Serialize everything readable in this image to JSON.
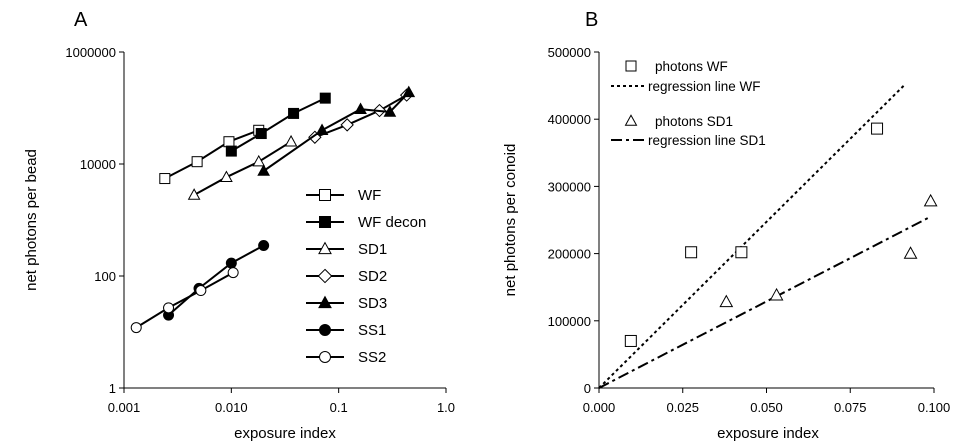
{
  "chart_data": [
    {
      "panel": "A",
      "type": "line",
      "log_x": true,
      "log_y": true,
      "xlabel": "exposure index",
      "ylabel": "net photons per bead",
      "xlim": [
        0.001,
        1.0
      ],
      "ylim": [
        1,
        1000000
      ],
      "xticks": [
        0.001,
        0.01,
        0.1,
        1.0
      ],
      "xtick_labels": [
        "0.001",
        "0.010",
        "0.1",
        "1.0"
      ],
      "yticks": [
        1,
        100,
        10000,
        1000000
      ],
      "ytick_labels": [
        "1",
        "100",
        "10000",
        "1000000"
      ],
      "legend_position": "lower-right",
      "series": [
        {
          "name": "WF",
          "marker": "open-square",
          "x": [
            0.0024,
            0.0048,
            0.0095,
            0.018
          ],
          "y": [
            5500,
            11000,
            25000,
            40000
          ]
        },
        {
          "name": "WF decon",
          "marker": "filled-square",
          "x": [
            0.01,
            0.019,
            0.038,
            0.075
          ],
          "y": [
            17000,
            35000,
            80000,
            150000
          ]
        },
        {
          "name": "SD1",
          "marker": "open-triangle",
          "x": [
            0.0045,
            0.009,
            0.018,
            0.036
          ],
          "y": [
            2800,
            5800,
            11000,
            25000
          ]
        },
        {
          "name": "SD2",
          "marker": "open-diamond",
          "x": [
            0.06,
            0.12,
            0.24,
            0.43
          ],
          "y": [
            30000,
            50000,
            90000,
            170000
          ]
        },
        {
          "name": "SD3",
          "marker": "filled-triangle",
          "x": [
            0.02,
            0.07,
            0.16,
            0.3,
            0.45
          ],
          "y": [
            7500,
            40000,
            95000,
            85000,
            190000
          ]
        },
        {
          "name": "SS1",
          "marker": "filled-circle",
          "x": [
            0.0026,
            0.005,
            0.01,
            0.02
          ],
          "y": [
            20,
            60,
            170,
            350
          ]
        },
        {
          "name": "SS2",
          "marker": "open-circle",
          "x": [
            0.0013,
            0.0026,
            0.0052,
            0.0104
          ],
          "y": [
            12,
            27,
            55,
            115
          ]
        }
      ]
    },
    {
      "panel": "B",
      "type": "scatter",
      "xlabel": "exposure index",
      "ylabel": "net photons per conoid",
      "xlim": [
        0.0,
        0.1
      ],
      "ylim": [
        0,
        500000
      ],
      "xticks": [
        0.0,
        0.025,
        0.05,
        0.075,
        0.1
      ],
      "xtick_labels": [
        "0.000",
        "0.025",
        "0.050",
        "0.075",
        "0.100"
      ],
      "yticks": [
        0,
        100000,
        200000,
        300000,
        400000,
        500000
      ],
      "ytick_labels": [
        "0",
        "100000",
        "200000",
        "300000",
        "400000",
        "500000"
      ],
      "legend_position": "top-left",
      "series": [
        {
          "name": "photons WF",
          "marker": "open-square",
          "x": [
            0.0095,
            0.0275,
            0.0425,
            0.083
          ],
          "y": [
            70000,
            202000,
            202000,
            386000
          ]
        },
        {
          "name": "photons SD1",
          "marker": "open-triangle",
          "x": [
            0.038,
            0.053,
            0.093,
            0.099
          ],
          "y": [
            128000,
            138000,
            200000,
            278000
          ]
        }
      ],
      "regression_lines": [
        {
          "name": "regression line WF",
          "style": "dotted",
          "x": [
            0.0,
            0.091
          ],
          "y": [
            0,
            450000
          ]
        },
        {
          "name": "regression line SD1",
          "style": "dash-dot",
          "x": [
            0.0,
            0.099
          ],
          "y": [
            0,
            255000
          ]
        }
      ]
    }
  ]
}
